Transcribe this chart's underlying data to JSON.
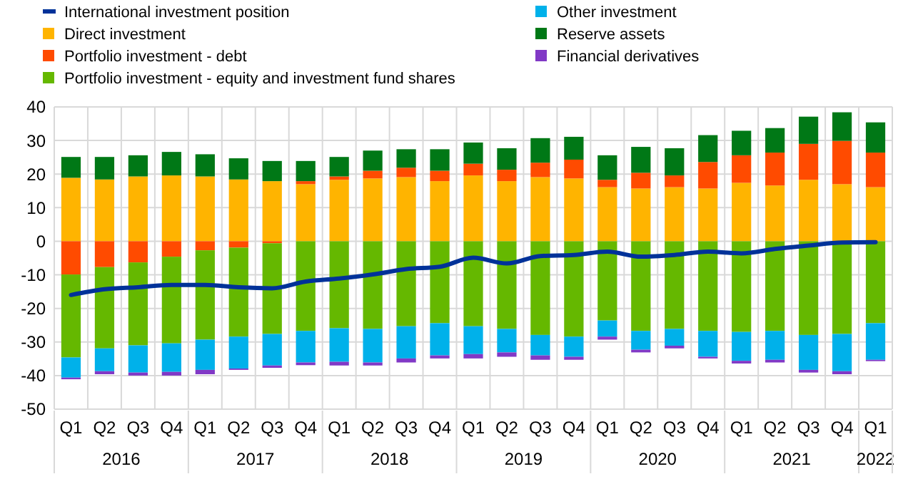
{
  "chart_data": {
    "type": "bar",
    "stacked": true,
    "categories": [
      "Q1",
      "Q2",
      "Q3",
      "Q4",
      "Q1",
      "Q2",
      "Q3",
      "Q4",
      "Q1",
      "Q2",
      "Q3",
      "Q4",
      "Q1",
      "Q2",
      "Q3",
      "Q4",
      "Q1",
      "Q2",
      "Q3",
      "Q4",
      "Q1",
      "Q2",
      "Q3",
      "Q4",
      "Q1"
    ],
    "annotations": [
      "2016",
      "2017",
      "2018",
      "2019",
      "2020",
      "2021",
      "2022"
    ],
    "series": [
      {
        "name": "International investment position",
        "type": "line",
        "color": "#003299",
        "values": [
          -16,
          -14.3,
          -13.7,
          -13,
          -13,
          -13.7,
          -14,
          -12,
          -11.1,
          -9.9,
          -8.3,
          -7.6,
          -4.9,
          -6.6,
          -4.4,
          -4.1,
          -3.1,
          -4.6,
          -4.1,
          -3.1,
          -3.6,
          -2.3,
          -1.3,
          -0.4,
          -0.3
        ]
      },
      {
        "name": "Direct investment",
        "color": "#ffb400",
        "values": [
          18.9,
          18.4,
          19.3,
          19.6,
          19.3,
          18.4,
          17.9,
          17.0,
          18.3,
          18.7,
          19.1,
          17.9,
          19.6,
          17.9,
          19.1,
          18.7,
          16.1,
          15.7,
          16.1,
          15.7,
          17.4,
          16.6,
          18.3,
          17.0,
          16.1
        ]
      },
      {
        "name": "Portfolio investment - debt",
        "color": "#ff4b00",
        "values": [
          -9.9,
          -7.7,
          -6.3,
          -4.6,
          -2.7,
          -1.9,
          -0.6,
          0.9,
          1.0,
          2.3,
          2.8,
          3.1,
          3.5,
          3.4,
          4.3,
          5.6,
          2.2,
          4.7,
          3.5,
          7.9,
          8.2,
          9.8,
          10.7,
          12.9,
          10.3
        ]
      },
      {
        "name": "Portfolio investment - equity and investment fund shares",
        "color": "#65b800",
        "values": [
          -24.7,
          -24.2,
          -24.7,
          -25.8,
          -26.6,
          -26.5,
          -27.0,
          -26.7,
          -25.9,
          -26.1,
          -25.3,
          -24.4,
          -25.3,
          -26.1,
          -27.9,
          -28.4,
          -23.6,
          -26.7,
          -26.1,
          -26.7,
          -27.0,
          -26.7,
          -27.9,
          -27.6,
          -24.4
        ]
      },
      {
        "name": "Other investment",
        "color": "#00b1ea",
        "values": [
          -6.0,
          -6.8,
          -8.1,
          -8.5,
          -9.0,
          -9.5,
          -9.4,
          -9.4,
          -10.0,
          -10.0,
          -9.6,
          -9.6,
          -8.3,
          -7.0,
          -6.1,
          -6.0,
          -4.8,
          -5.6,
          -5.0,
          -7.7,
          -8.6,
          -8.6,
          -10.4,
          -11.1,
          -10.9
        ]
      },
      {
        "name": "Reserve assets",
        "color": "#007816",
        "values": [
          6.2,
          6.7,
          6.3,
          7.0,
          6.6,
          6.3,
          6.0,
          6.0,
          5.8,
          6.0,
          5.5,
          6.4,
          6.3,
          6.4,
          7.3,
          6.8,
          7.3,
          7.7,
          8.1,
          8.0,
          7.3,
          7.3,
          8.1,
          8.5,
          9.0
        ]
      },
      {
        "name": "Financial derivatives",
        "color": "#8139c6",
        "values": [
          -0.5,
          -0.9,
          -0.9,
          -1.1,
          -1.3,
          -0.4,
          -0.7,
          -0.8,
          -1.1,
          -0.9,
          -1.2,
          -0.9,
          -1.3,
          -1.3,
          -1.3,
          -0.9,
          -0.9,
          -0.8,
          -0.8,
          -0.5,
          -0.8,
          -0.8,
          -0.8,
          -0.9,
          -0.4
        ]
      }
    ],
    "ylim": [
      -50,
      40
    ],
    "yticks": [
      -50,
      -40,
      -30,
      -20,
      -10,
      0,
      10,
      20,
      30,
      40
    ],
    "grid": true,
    "legend": "top",
    "marker": "none",
    "line_style": "solid"
  }
}
